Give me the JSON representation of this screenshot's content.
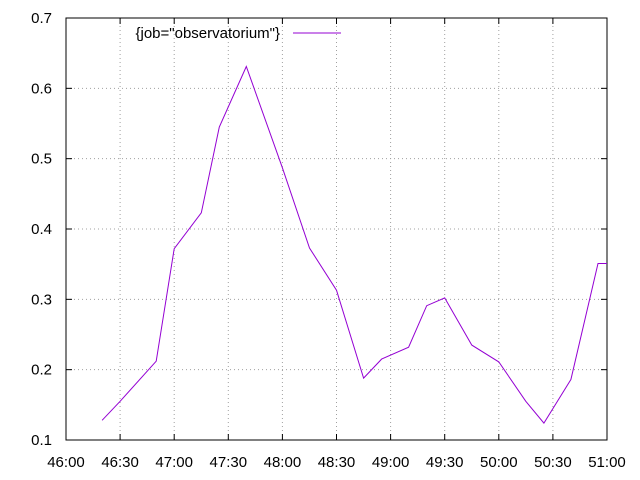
{
  "chart_data": {
    "type": "line",
    "title": "",
    "xlabel": "",
    "ylabel": "",
    "xlim": [
      "46:00",
      "51:00"
    ],
    "ylim": [
      0.1,
      0.7
    ],
    "grid": true,
    "legend_position": "top-left",
    "x_ticks": [
      "46:00",
      "46:30",
      "47:00",
      "47:30",
      "48:00",
      "48:30",
      "49:00",
      "49:30",
      "50:00",
      "50:30",
      "51:00"
    ],
    "y_ticks": [
      "0.1",
      "0.2",
      "0.3",
      "0.4",
      "0.5",
      "0.6",
      "0.7"
    ],
    "series": [
      {
        "name": "{job=\"observatorium\"}",
        "color": "#9400d3",
        "x": [
          "46:20",
          "46:30",
          "46:50",
          "47:00",
          "47:15",
          "47:25",
          "47:40",
          "48:00",
          "48:15",
          "48:30",
          "48:45",
          "48:55",
          "49:10",
          "49:20",
          "49:30",
          "49:45",
          "50:00",
          "50:15",
          "50:25",
          "50:40",
          "50:55",
          "51:00"
        ],
        "y": [
          0.128,
          0.155,
          0.212,
          0.372,
          0.423,
          0.545,
          0.631,
          0.487,
          0.373,
          0.313,
          0.188,
          0.215,
          0.232,
          0.291,
          0.302,
          0.235,
          0.211,
          0.155,
          0.124,
          0.186,
          0.351,
          0.351
        ]
      }
    ]
  }
}
